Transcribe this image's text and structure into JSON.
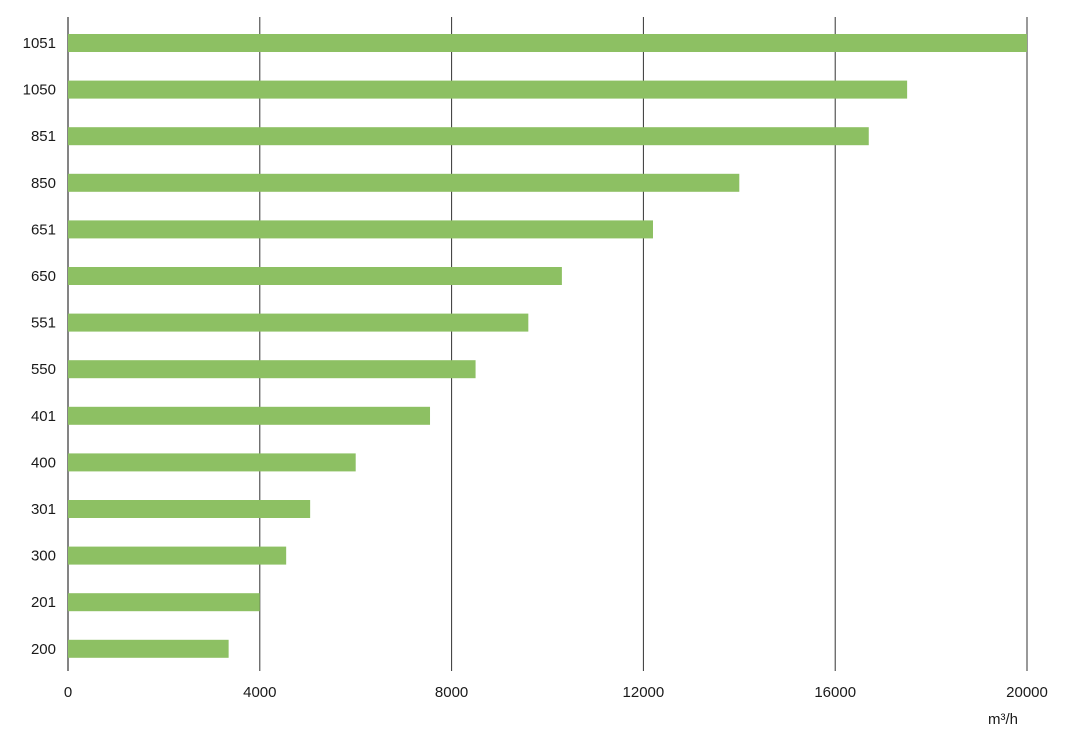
{
  "chart_data": {
    "type": "bar",
    "orientation": "horizontal",
    "categories": [
      "1051",
      "1050",
      "851",
      "850",
      "651",
      "650",
      "551",
      "550",
      "401",
      "400",
      "301",
      "300",
      "201",
      "200"
    ],
    "values": [
      20000,
      17500,
      16700,
      14000,
      12200,
      10300,
      9600,
      8500,
      7550,
      6000,
      5050,
      4550,
      4000,
      3350
    ],
    "xlim": [
      0,
      20000
    ],
    "xticks": [
      0,
      4000,
      8000,
      12000,
      16000,
      20000
    ],
    "xticklabels": [
      "0",
      "4000",
      "8000",
      "12000",
      "16000",
      "20000"
    ],
    "xlabel": "m³/h",
    "grid": "vertical",
    "bar_color": "#8dc063",
    "grid_color": "#333333"
  }
}
